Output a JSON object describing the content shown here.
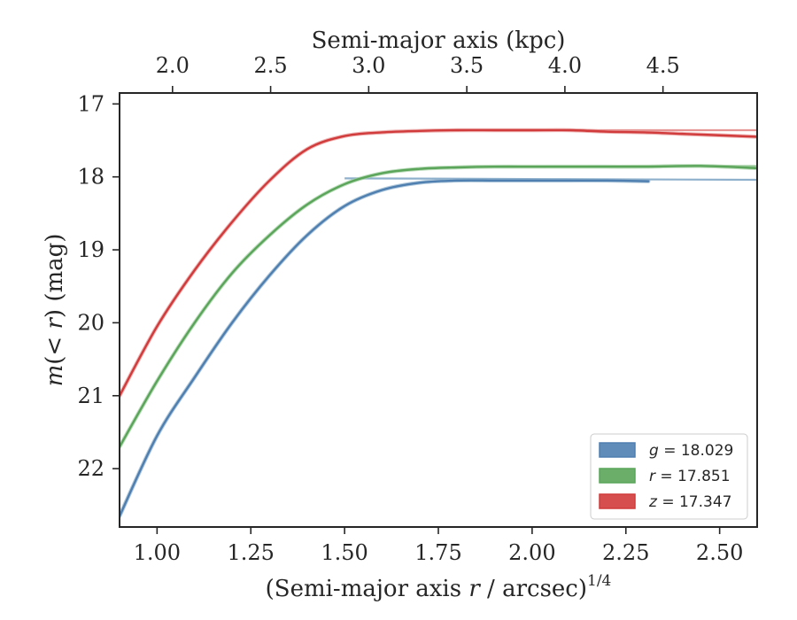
{
  "chart_data": {
    "type": "line",
    "xlabel_prefix": "(Semi-major axis ",
    "xlabel_var": "r",
    "xlabel_suffix": " / arcsec)",
    "xlabel_sup": "1/4",
    "ylabel_var_open": "m",
    "ylabel_mid": "(< ",
    "ylabel_var_r": "r",
    "ylabel_close": ") (mag)",
    "top_xlabel": "Semi-major axis (kpc)",
    "xlim": [
      0.9,
      2.6
    ],
    "ylim": [
      22.8,
      16.85
    ],
    "top_xlim": [
      1.73,
      4.98
    ],
    "x_ticks": [
      "1.00",
      "1.25",
      "1.50",
      "1.75",
      "2.00",
      "2.25",
      "2.50"
    ],
    "x_tick_values": [
      1.0,
      1.25,
      1.5,
      1.75,
      2.0,
      2.25,
      2.5
    ],
    "y_ticks": [
      "17",
      "18",
      "19",
      "20",
      "21",
      "22"
    ],
    "y_tick_values": [
      17,
      18,
      19,
      20,
      21,
      22
    ],
    "top_x_ticks": [
      "2.0",
      "2.5",
      "3.0",
      "3.5",
      "4.0",
      "4.5"
    ],
    "top_x_tick_values": [
      2.0,
      2.5,
      3.0,
      3.5,
      4.0,
      4.5
    ],
    "grid": false,
    "legend_position": "lower-right",
    "series": [
      {
        "name": "g = 18.029",
        "legend_var": "g",
        "legend_value": "= 18.029",
        "color": "#4e7fb0",
        "model_color": "#8fb0cc",
        "x": [
          0.9,
          1.0,
          1.1,
          1.2,
          1.3,
          1.4,
          1.5,
          1.6,
          1.7,
          1.8,
          1.9,
          2.0,
          2.1,
          2.2,
          2.31
        ],
        "y": [
          22.65,
          21.55,
          20.75,
          20.0,
          19.35,
          18.8,
          18.4,
          18.18,
          18.08,
          18.05,
          18.05,
          18.05,
          18.05,
          18.05,
          18.06
        ],
        "model_x": [
          1.5,
          2.6
        ],
        "model_y": [
          18.02,
          18.04
        ]
      },
      {
        "name": "r = 17.851",
        "legend_var": "r",
        "legend_value": "= 17.851",
        "color": "#5aa55a",
        "model_color": "#9fcd9f",
        "x": [
          0.9,
          1.0,
          1.1,
          1.2,
          1.3,
          1.4,
          1.5,
          1.6,
          1.7,
          1.8,
          1.9,
          2.0,
          2.1,
          2.2,
          2.3,
          2.45,
          2.6
        ],
        "y": [
          21.7,
          20.8,
          20.0,
          19.32,
          18.8,
          18.38,
          18.1,
          17.95,
          17.89,
          17.87,
          17.86,
          17.86,
          17.86,
          17.86,
          17.86,
          17.85,
          17.88
        ],
        "model_x": [
          1.9,
          2.6
        ],
        "model_y": [
          17.86,
          17.85
        ]
      },
      {
        "name": "z = 17.347",
        "legend_var": "z",
        "legend_value": "= 17.347",
        "color": "#d13b3b",
        "model_color": "#e79494",
        "x": [
          0.9,
          1.0,
          1.1,
          1.2,
          1.3,
          1.4,
          1.5,
          1.6,
          1.7,
          1.8,
          1.9,
          2.0,
          2.1,
          2.2,
          2.3,
          2.4,
          2.5,
          2.6
        ],
        "y": [
          21.0,
          20.05,
          19.28,
          18.62,
          18.05,
          17.62,
          17.44,
          17.39,
          17.37,
          17.36,
          17.36,
          17.36,
          17.36,
          17.38,
          17.39,
          17.41,
          17.43,
          17.45
        ],
        "model_x": [
          1.9,
          2.6
        ],
        "model_y": [
          17.36,
          17.36
        ]
      }
    ]
  }
}
